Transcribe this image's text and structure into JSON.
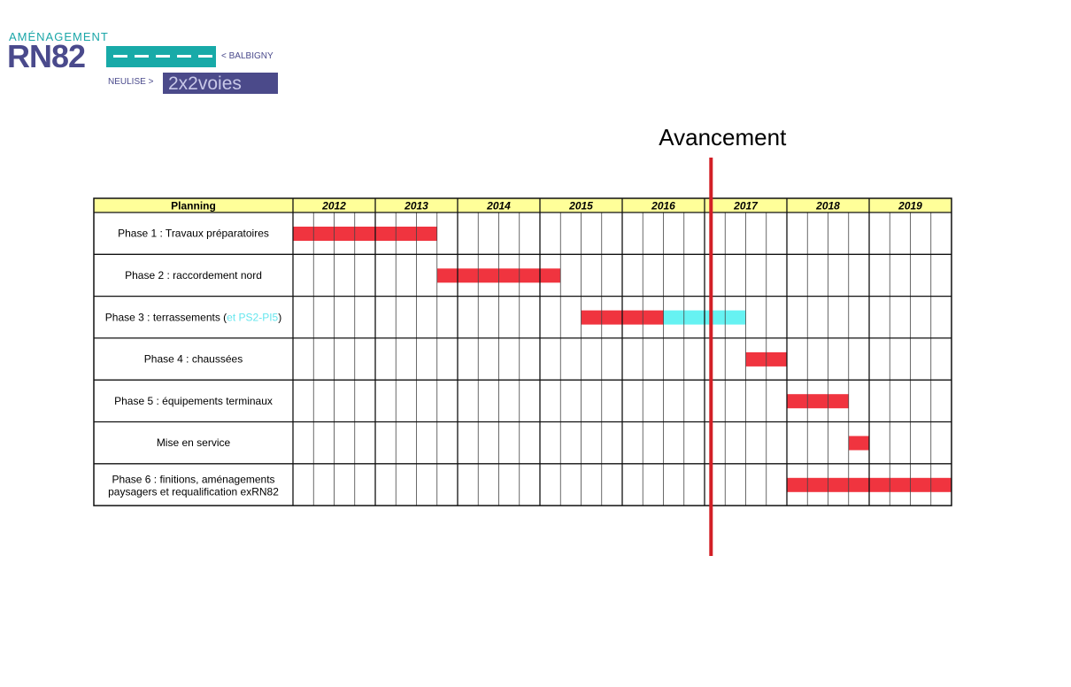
{
  "logo": {
    "top_text": "AMÉNAGEMENT",
    "main_text": "RN82",
    "right_text": "< BALBIGNY",
    "left_text": "NEULISE >",
    "badge_text": "2x2voies"
  },
  "chart_data": {
    "type": "gantt",
    "header_label": "Planning",
    "years": [
      "2012",
      "2013",
      "2014",
      "2015",
      "2016",
      "2017",
      "2018",
      "2019"
    ],
    "quarters_per_year": 4,
    "rows": [
      {
        "label": "Phase 1 : Travaux préparatoires",
        "bars": [
          {
            "start": 2012.0,
            "end": 2013.75,
            "status": "done"
          }
        ]
      },
      {
        "label": "Phase 2 : raccordement nord",
        "bars": [
          {
            "start": 2013.75,
            "end": 2015.25,
            "status": "done"
          }
        ]
      },
      {
        "label": "Phase 3 : terrassements ",
        "label_suffix": "(",
        "label_highlight": "et PS2-PI5",
        "label_end": ")",
        "bars": [
          {
            "start": 2015.5,
            "end": 2016.5,
            "status": "done"
          },
          {
            "start": 2016.5,
            "end": 2017.5,
            "status": "other"
          }
        ]
      },
      {
        "label": "Phase 4 : chaussées",
        "bars": [
          {
            "start": 2017.5,
            "end": 2018.0,
            "status": "done"
          }
        ]
      },
      {
        "label": "Phase 5 : équipements terminaux",
        "bars": [
          {
            "start": 2018.0,
            "end": 2018.75,
            "status": "done"
          }
        ]
      },
      {
        "label": "Mise en service",
        "bars": [
          {
            "start": 2018.75,
            "end": 2019.0,
            "status": "done"
          }
        ]
      },
      {
        "label": "Phase 6 : finitions, aménagements",
        "label_line2": "paysagers et requalification exRN82",
        "bars": [
          {
            "start": 2018.0,
            "end": 2020.0,
            "status": "done"
          }
        ]
      }
    ],
    "progress_marker": {
      "label": "Avancement",
      "value": 2017.1
    },
    "colors": {
      "done_bar": "#f0343f",
      "other_bar": "#66f2f2",
      "header_fill": "#ffff99",
      "marker": "#d21f26",
      "highlight_text": "#66e6ee"
    }
  }
}
